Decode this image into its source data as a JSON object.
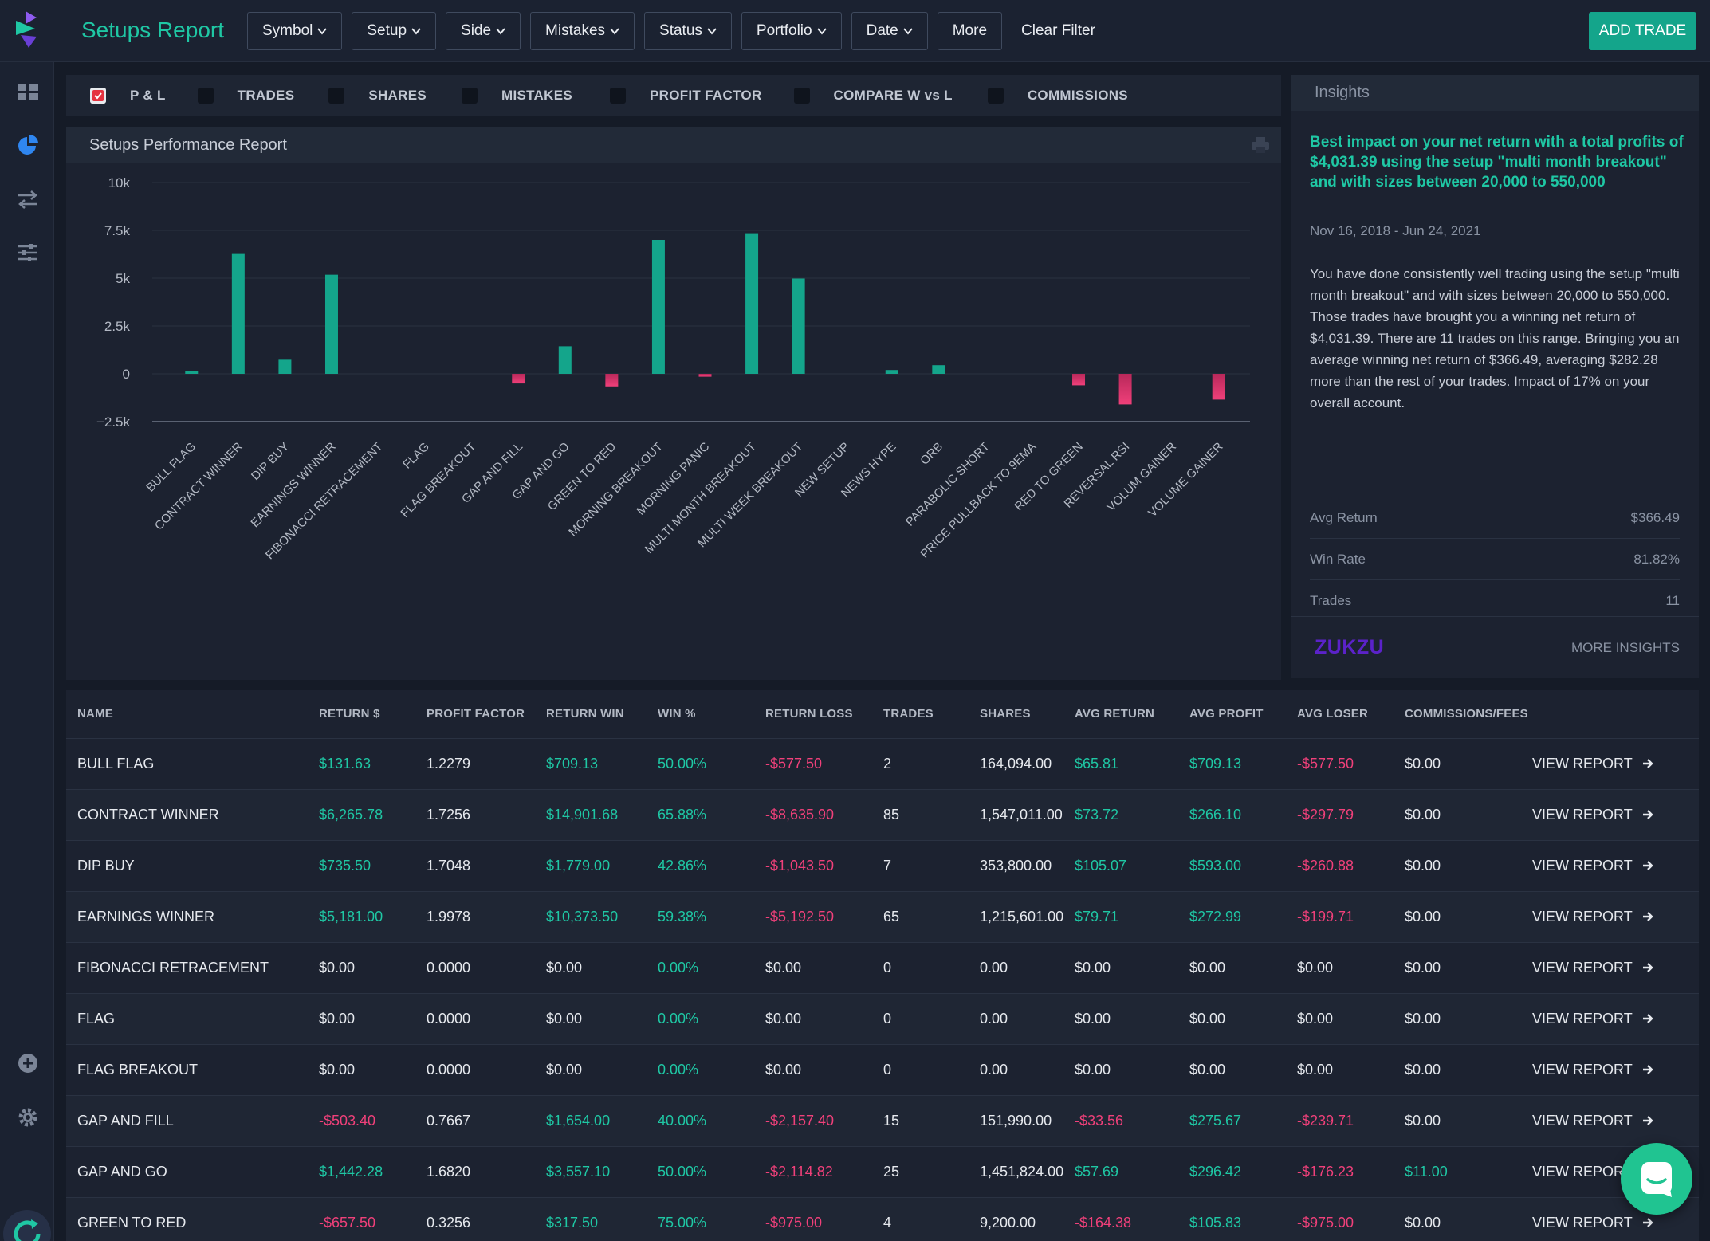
{
  "header": {
    "title": "Setups Report",
    "filters": [
      "Symbol",
      "Setup",
      "Side",
      "Mistakes",
      "Status",
      "Portfolio",
      "Date"
    ],
    "more_label": "More",
    "clear_label": "Clear Filter",
    "add_trade_label": "ADD TRADE"
  },
  "sidebar": {
    "items": [
      "dashboard-icon",
      "reports-pie-icon",
      "trades-swap-icon",
      "settings-sliders-icon"
    ],
    "bottom": [
      "add-circle-icon",
      "gear-icon",
      "refresh-icon"
    ]
  },
  "metrics": [
    {
      "label": "P & L",
      "checked": true
    },
    {
      "label": "TRADES",
      "checked": false
    },
    {
      "label": "SHARES",
      "checked": false
    },
    {
      "label": "MISTAKES",
      "checked": false
    },
    {
      "label": "PROFIT FACTOR",
      "checked": false
    },
    {
      "label": "COMPARE W vs L",
      "checked": false
    },
    {
      "label": "COMMISSIONS",
      "checked": false
    }
  ],
  "chart_panel": {
    "title": "Setups Performance Report"
  },
  "chart_data": {
    "type": "bar",
    "title": "Setups Performance Report",
    "xlabel": "",
    "ylabel": "",
    "ylim": [
      -2500,
      10000
    ],
    "yticks": [
      10000,
      7500,
      5000,
      2500,
      0,
      -2500
    ],
    "ytick_labels": [
      "10k",
      "7.5k",
      "5k",
      "2.5k",
      "0",
      "−2.5k"
    ],
    "grid": true,
    "colors": {
      "positive": "#14a58b",
      "negative": "#e83d78"
    },
    "categories": [
      "BULL FLAG",
      "CONTRACT WINNER",
      "DIP BUY",
      "EARNINGS WINNER",
      "FIBONACCI RETRACEMENT",
      "FLAG",
      "FLAG BREAKOUT",
      "GAP AND FILL",
      "GAP AND GO",
      "GREEN TO RED",
      "MORNING BREAKOUT",
      "MORNING PANIC",
      "MULTI MONTH BREAKOUT",
      "MULTI WEEK BREAKOUT",
      "NEW SETUP",
      "NEWS HYPE",
      "ORB",
      "PARABOLIC SHORT",
      "PRICE PULLBACK TO 9EMA",
      "RED TO GREEN",
      "REVERSAL RSI",
      "VOLUM GAINER",
      "VOLUME GAINER"
    ],
    "values": [
      131.63,
      6265.78,
      735.5,
      5181.0,
      0,
      0,
      0,
      -503.4,
      1442.28,
      -657.5,
      7000,
      -150,
      7350,
      4980,
      0,
      200,
      450,
      0,
      0,
      -600,
      -1600,
      0,
      -1350
    ]
  },
  "insights": {
    "title": "Insights",
    "headline": "Best impact on your net return with a total profits of $4,031.39 using the setup \"multi month breakout\" and with sizes between 20,000 to 550,000",
    "date_range": "Nov 16, 2018 - Jun 24, 2021",
    "body": "You have done consistently well trading using the setup \"multi month breakout\" and with sizes between 20,000 to 550,000. Those trades have brought you a winning net return of $4,031.39. There are 11 trades on this range. Bringing you an average winning net return of $366.49, averaging $282.28 more than the rest of your trades. Impact of 17% on your overall account.",
    "stats": [
      {
        "label": "Avg Return",
        "value": "$366.49"
      },
      {
        "label": "Win Rate",
        "value": "81.82%"
      },
      {
        "label": "Trades",
        "value": "11"
      }
    ],
    "brand": "ZUKZU",
    "more_label": "MORE INSIGHTS"
  },
  "table": {
    "columns": [
      "NAME",
      "RETURN $",
      "PROFIT FACTOR",
      "RETURN WIN",
      "WIN %",
      "RETURN LOSS",
      "TRADES",
      "SHARES",
      "AVG RETURN",
      "AVG PROFIT",
      "AVG LOSER",
      "COMMISSIONS/FEES"
    ],
    "view_label": "VIEW REPORT",
    "rows": [
      [
        "BULL FLAG",
        "$131.63",
        "1.2279",
        "$709.13",
        "50.00%",
        "-$577.50",
        "2",
        "164,094.00",
        "$65.81",
        "$709.13",
        "-$577.50",
        "$0.00"
      ],
      [
        "CONTRACT WINNER",
        "$6,265.78",
        "1.7256",
        "$14,901.68",
        "65.88%",
        "-$8,635.90",
        "85",
        "1,547,011.00",
        "$73.72",
        "$266.10",
        "-$297.79",
        "$0.00"
      ],
      [
        "DIP BUY",
        "$735.50",
        "1.7048",
        "$1,779.00",
        "42.86%",
        "-$1,043.50",
        "7",
        "353,800.00",
        "$105.07",
        "$593.00",
        "-$260.88",
        "$0.00"
      ],
      [
        "EARNINGS WINNER",
        "$5,181.00",
        "1.9978",
        "$10,373.50",
        "59.38%",
        "-$5,192.50",
        "65",
        "1,215,601.00",
        "$79.71",
        "$272.99",
        "-$199.71",
        "$0.00"
      ],
      [
        "FIBONACCI RETRACEMENT",
        "$0.00",
        "0.0000",
        "$0.00",
        "0.00%",
        "$0.00",
        "0",
        "0.00",
        "$0.00",
        "$0.00",
        "$0.00",
        "$0.00"
      ],
      [
        "FLAG",
        "$0.00",
        "0.0000",
        "$0.00",
        "0.00%",
        "$0.00",
        "0",
        "0.00",
        "$0.00",
        "$0.00",
        "$0.00",
        "$0.00"
      ],
      [
        "FLAG BREAKOUT",
        "$0.00",
        "0.0000",
        "$0.00",
        "0.00%",
        "$0.00",
        "0",
        "0.00",
        "$0.00",
        "$0.00",
        "$0.00",
        "$0.00"
      ],
      [
        "GAP AND FILL",
        "-$503.40",
        "0.7667",
        "$1,654.00",
        "40.00%",
        "-$2,157.40",
        "15",
        "151,990.00",
        "-$33.56",
        "$275.67",
        "-$239.71",
        "$0.00"
      ],
      [
        "GAP AND GO",
        "$1,442.28",
        "1.6820",
        "$3,557.10",
        "50.00%",
        "-$2,114.82",
        "25",
        "1,451,824.00",
        "$57.69",
        "$296.42",
        "-$176.23",
        "$11.00"
      ],
      [
        "GREEN TO RED",
        "-$657.50",
        "0.3256",
        "$317.50",
        "75.00%",
        "-$975.00",
        "4",
        "9,200.00",
        "-$164.38",
        "$105.83",
        "-$975.00",
        "$0.00"
      ]
    ]
  }
}
